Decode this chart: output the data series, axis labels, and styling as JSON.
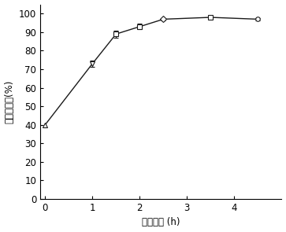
{
  "x": [
    0,
    1,
    1.5,
    2,
    2.5,
    3.5,
    4.5
  ],
  "y": [
    40,
    73,
    89,
    93,
    97,
    98,
    97
  ],
  "yerr": [
    0.0,
    1.5,
    1.8,
    1.5,
    0.5,
    1.0,
    0.8
  ],
  "markers": [
    "^",
    "v",
    "s",
    "s",
    "D",
    "s",
    "o"
  ],
  "line_color": "#1a1a1a",
  "xlabel": "酶解时间 (h)",
  "ylabel": "脂质回收率(%)",
  "xlim": [
    -0.1,
    5
  ],
  "ylim": [
    0,
    105
  ],
  "xticks": [
    0,
    1,
    2,
    3,
    4
  ],
  "yticks": [
    0,
    10,
    20,
    30,
    40,
    50,
    60,
    70,
    80,
    90,
    100
  ],
  "figsize": [
    3.63,
    2.95
  ],
  "dpi": 100,
  "font_size": 8.5
}
